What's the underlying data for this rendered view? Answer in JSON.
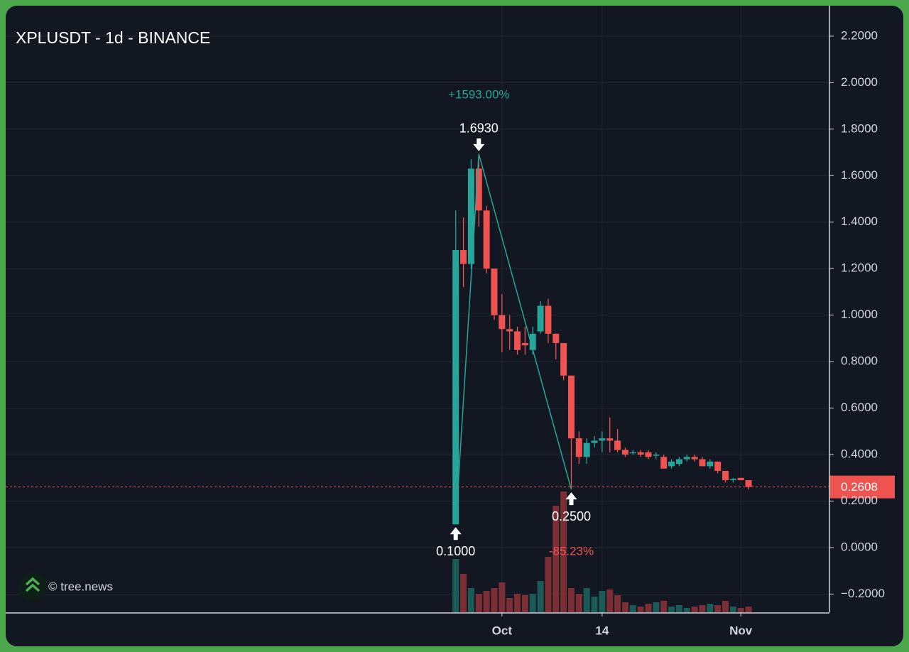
{
  "chart_data": {
    "type": "candlestick",
    "title": "XPLUSDT - 1d - BINANCE",
    "watermark": "© tree.news",
    "up_color": "#26a69a",
    "down_color": "#ef5350",
    "up_volume_color": "#1b5a56",
    "down_volume_color": "#7b2f35",
    "x": [
      -6,
      -5,
      -4,
      -3,
      -2,
      -1,
      0,
      1,
      2,
      3,
      4,
      5,
      6,
      7,
      8,
      9,
      10,
      11,
      12,
      13,
      14,
      15,
      16,
      17,
      18,
      19,
      20,
      21,
      22,
      23,
      24,
      25,
      26,
      27,
      28,
      29,
      30,
      31,
      32
    ],
    "open": [
      0.1,
      1.28,
      1.22,
      1.63,
      1.45,
      1.2,
      1.0,
      0.94,
      0.93,
      0.88,
      0.85,
      0.93,
      1.04,
      0.92,
      0.88,
      0.74,
      0.47,
      0.39,
      0.45,
      0.46,
      0.47,
      0.46,
      0.42,
      0.41,
      0.41,
      0.41,
      0.4,
      0.39,
      0.35,
      0.36,
      0.38,
      0.39,
      0.38,
      0.35,
      0.37,
      0.33,
      0.29,
      0.3,
      0.29
    ],
    "high": [
      1.45,
      1.42,
      1.67,
      1.693,
      1.47,
      1.2,
      1.09,
      1.0,
      0.95,
      0.95,
      0.95,
      1.06,
      1.07,
      0.92,
      0.88,
      0.74,
      0.5,
      0.47,
      0.48,
      0.5,
      0.56,
      0.51,
      0.43,
      0.42,
      0.42,
      0.42,
      0.41,
      0.4,
      0.38,
      0.39,
      0.4,
      0.4,
      0.39,
      0.38,
      0.37,
      0.33,
      0.3,
      0.3,
      0.29
    ],
    "low": [
      0.1,
      1.12,
      1.2,
      1.38,
      1.18,
      0.98,
      0.84,
      0.85,
      0.83,
      0.83,
      0.83,
      0.92,
      0.88,
      0.81,
      0.72,
      0.25,
      0.36,
      0.36,
      0.43,
      0.41,
      0.41,
      0.41,
      0.39,
      0.4,
      0.39,
      0.38,
      0.38,
      0.34,
      0.34,
      0.35,
      0.37,
      0.37,
      0.35,
      0.34,
      0.32,
      0.28,
      0.28,
      0.29,
      0.25
    ],
    "close": [
      1.28,
      1.22,
      1.63,
      1.45,
      1.2,
      1.0,
      0.94,
      0.93,
      0.85,
      0.87,
      0.92,
      1.04,
      0.92,
      0.88,
      0.74,
      0.47,
      0.39,
      0.45,
      0.46,
      0.47,
      0.46,
      0.42,
      0.4,
      0.41,
      0.4,
      0.39,
      0.4,
      0.34,
      0.37,
      0.38,
      0.39,
      0.38,
      0.35,
      0.37,
      0.33,
      0.29,
      0.295,
      0.29,
      0.2608
    ],
    "volume": [
      75,
      54,
      34,
      26,
      30,
      34,
      42,
      20,
      26,
      24,
      26,
      44,
      78,
      150,
      170,
      34,
      26,
      34,
      22,
      30,
      32,
      24,
      14,
      10,
      8,
      12,
      14,
      16,
      8,
      10,
      6,
      8,
      10,
      12,
      10,
      16,
      8,
      6,
      8
    ],
    "xlim": [
      -64.4,
      42.5
    ],
    "xticks": [
      {
        "value": 0,
        "label": "Oct"
      },
      {
        "value": 13,
        "label": "14"
      },
      {
        "value": 31,
        "label": "Nov"
      }
    ],
    "ylim": [
      -0.278,
      2.331
    ],
    "yticks": [
      {
        "value": -0.2,
        "label": "−0.2000"
      },
      {
        "value": 0,
        "label": "0.0000"
      },
      {
        "value": 0.2,
        "label": "0.2000"
      },
      {
        "value": 0.4,
        "label": "0.4000"
      },
      {
        "value": 0.6,
        "label": "0.6000"
      },
      {
        "value": 0.8,
        "label": "0.8000"
      },
      {
        "value": 1.0,
        "label": "1.0000"
      },
      {
        "value": 1.2,
        "label": "1.2000"
      },
      {
        "value": 1.4,
        "label": "1.4000"
      },
      {
        "value": 1.6,
        "label": "1.6000"
      },
      {
        "value": 1.8,
        "label": "1.8000"
      },
      {
        "value": 2.0,
        "label": "2.0000"
      },
      {
        "value": 2.2,
        "label": "2.2000"
      }
    ],
    "grid": true,
    "pivots": [
      {
        "x": -6,
        "value": 0.1,
        "label": "0.1000"
      },
      {
        "x": -3,
        "value": 1.693,
        "label": "1.6930"
      },
      {
        "x": 9,
        "value": 0.25,
        "label": "0.2500"
      }
    ],
    "changes": [
      {
        "value": 1593,
        "label": "+1593.00%",
        "color": "#26a69a"
      },
      {
        "value": -85.23,
        "label": "-85.23%",
        "color": "#ef5350"
      }
    ],
    "last_price": {
      "value": 0.2608,
      "label": "0.2608",
      "color": "#ef5350"
    }
  }
}
